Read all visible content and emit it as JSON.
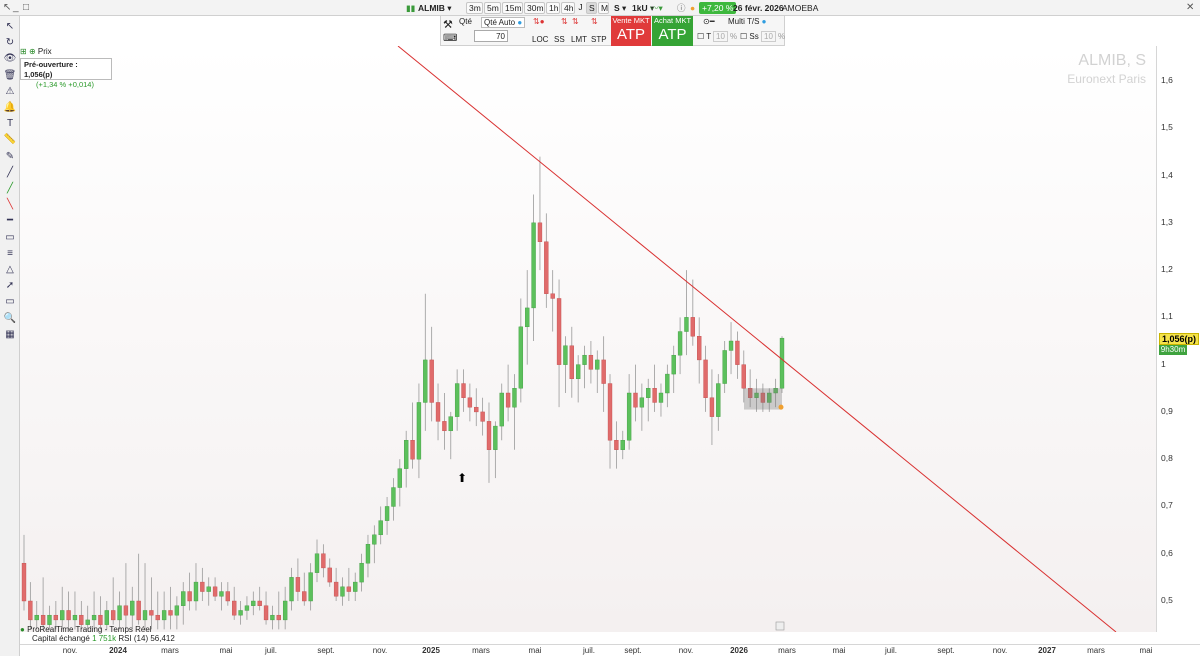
{
  "topbar": {
    "symbol": "ALMIB",
    "timeframes": [
      "3m",
      "5m",
      "15m",
      "30m",
      "1h",
      "4h",
      "J",
      "S",
      "M"
    ],
    "selected_timeframe": "S",
    "timeframe_extra": "S",
    "units": "1kU",
    "change_badge": "+7,20 %",
    "date": "26 févr. 2026",
    "ticker_label": "AMOEBA",
    "colors": {
      "badge": "#3db83d"
    }
  },
  "orderbar": {
    "qty_label": "Qté",
    "qty_auto_label": "Qté Auto",
    "qty_value": "70",
    "order_types": [
      "LOC",
      "SS",
      "LMT",
      "STP"
    ],
    "sell_label": "Vente MKT",
    "sell_value": "ATP",
    "buy_label": "Achat MKT",
    "buy_value": "ATP",
    "multi_label": "Multi T/S",
    "t_label": "T",
    "t_value": "10",
    "ss_label": "Ss",
    "ss_value": "10",
    "percent": "%",
    "colors": {
      "sell": "#e03a3a",
      "buy": "#35a435"
    }
  },
  "chart": {
    "prix_label": "Prix",
    "preopen_label": "Pré-ouverture : 1,056(p)",
    "preopen_change": "(+1,34 % +0,014)",
    "watermark_symbol": "ALMIB, S",
    "watermark_exchange": "Euronext Paris",
    "price_tag": "1,056(p)",
    "time_tag": "9h30m",
    "status_title": "ProRealTime Trading - Temps Réel",
    "capital_label": "Capital échangé",
    "capital_value": "1 751k",
    "rsi_label": "RSI (14)",
    "rsi_value": "56,412",
    "colors": {
      "up": "#5cc05c",
      "down": "#e06b6b",
      "trendline": "#d93030"
    }
  },
  "chart_data": {
    "type": "candlestick",
    "y_ticks": [
      "1,6",
      "1,5",
      "1,4",
      "1,3",
      "1,2",
      "1,1",
      "1",
      "0,9",
      "0,8",
      "0,7",
      "0,6",
      "0,5"
    ],
    "ylim": [
      0.44,
      1.67
    ],
    "x_ticks": [
      "nov.",
      "2024",
      "mars",
      "mai",
      "juil.",
      "sept.",
      "nov.",
      "2025",
      "mars",
      "mai",
      "juil.",
      "sept.",
      "nov.",
      "2026",
      "mars",
      "mai",
      "juil.",
      "sept.",
      "nov.",
      "2027",
      "mars",
      "mai"
    ],
    "year_ticks": [
      "2024",
      "2025",
      "2026",
      "2027"
    ],
    "last_price": 1.056,
    "trendline": [
      {
        "date": "2025-02",
        "value": 1.67
      },
      {
        "date": "2026-03",
        "value": 0.96
      },
      {
        "date": "2027-03",
        "value": 0.44
      }
    ],
    "series": [
      {
        "o": 0.58,
        "h": 0.64,
        "l": 0.48,
        "c": 0.5
      },
      {
        "o": 0.5,
        "h": 0.54,
        "l": 0.44,
        "c": 0.46
      },
      {
        "o": 0.46,
        "h": 0.5,
        "l": 0.44,
        "c": 0.47
      },
      {
        "o": 0.47,
        "h": 0.55,
        "l": 0.44,
        "c": 0.45
      },
      {
        "o": 0.45,
        "h": 0.49,
        "l": 0.44,
        "c": 0.47
      },
      {
        "o": 0.47,
        "h": 0.5,
        "l": 0.44,
        "c": 0.46
      },
      {
        "o": 0.46,
        "h": 0.53,
        "l": 0.44,
        "c": 0.48
      },
      {
        "o": 0.48,
        "h": 0.52,
        "l": 0.44,
        "c": 0.46
      },
      {
        "o": 0.46,
        "h": 0.52,
        "l": 0.44,
        "c": 0.47
      },
      {
        "o": 0.47,
        "h": 0.5,
        "l": 0.44,
        "c": 0.45
      },
      {
        "o": 0.45,
        "h": 0.49,
        "l": 0.44,
        "c": 0.46
      },
      {
        "o": 0.46,
        "h": 0.52,
        "l": 0.44,
        "c": 0.47
      },
      {
        "o": 0.47,
        "h": 0.51,
        "l": 0.44,
        "c": 0.45
      },
      {
        "o": 0.45,
        "h": 0.5,
        "l": 0.44,
        "c": 0.48
      },
      {
        "o": 0.48,
        "h": 0.55,
        "l": 0.45,
        "c": 0.46
      },
      {
        "o": 0.46,
        "h": 0.52,
        "l": 0.44,
        "c": 0.49
      },
      {
        "o": 0.49,
        "h": 0.58,
        "l": 0.44,
        "c": 0.47
      },
      {
        "o": 0.47,
        "h": 0.53,
        "l": 0.44,
        "c": 0.5
      },
      {
        "o": 0.5,
        "h": 0.6,
        "l": 0.45,
        "c": 0.46
      },
      {
        "o": 0.46,
        "h": 0.58,
        "l": 0.44,
        "c": 0.48
      },
      {
        "o": 0.48,
        "h": 0.55,
        "l": 0.44,
        "c": 0.47
      },
      {
        "o": 0.47,
        "h": 0.52,
        "l": 0.44,
        "c": 0.46
      },
      {
        "o": 0.46,
        "h": 0.52,
        "l": 0.44,
        "c": 0.48
      },
      {
        "o": 0.48,
        "h": 0.53,
        "l": 0.44,
        "c": 0.47
      },
      {
        "o": 0.47,
        "h": 0.51,
        "l": 0.44,
        "c": 0.49
      },
      {
        "o": 0.49,
        "h": 0.54,
        "l": 0.45,
        "c": 0.52
      },
      {
        "o": 0.52,
        "h": 0.56,
        "l": 0.48,
        "c": 0.5
      },
      {
        "o": 0.5,
        "h": 0.58,
        "l": 0.48,
        "c": 0.54
      },
      {
        "o": 0.54,
        "h": 0.57,
        "l": 0.5,
        "c": 0.52
      },
      {
        "o": 0.52,
        "h": 0.55,
        "l": 0.49,
        "c": 0.53
      },
      {
        "o": 0.53,
        "h": 0.55,
        "l": 0.5,
        "c": 0.51
      },
      {
        "o": 0.51,
        "h": 0.54,
        "l": 0.48,
        "c": 0.52
      },
      {
        "o": 0.52,
        "h": 0.54,
        "l": 0.49,
        "c": 0.5
      },
      {
        "o": 0.5,
        "h": 0.53,
        "l": 0.46,
        "c": 0.47
      },
      {
        "o": 0.47,
        "h": 0.5,
        "l": 0.45,
        "c": 0.48
      },
      {
        "o": 0.48,
        "h": 0.51,
        "l": 0.46,
        "c": 0.49
      },
      {
        "o": 0.49,
        "h": 0.52,
        "l": 0.47,
        "c": 0.5
      },
      {
        "o": 0.5,
        "h": 0.53,
        "l": 0.48,
        "c": 0.49
      },
      {
        "o": 0.49,
        "h": 0.52,
        "l": 0.45,
        "c": 0.46
      },
      {
        "o": 0.46,
        "h": 0.49,
        "l": 0.44,
        "c": 0.47
      },
      {
        "o": 0.47,
        "h": 0.52,
        "l": 0.44,
        "c": 0.46
      },
      {
        "o": 0.46,
        "h": 0.53,
        "l": 0.44,
        "c": 0.5
      },
      {
        "o": 0.5,
        "h": 0.57,
        "l": 0.48,
        "c": 0.55
      },
      {
        "o": 0.55,
        "h": 0.59,
        "l": 0.5,
        "c": 0.52
      },
      {
        "o": 0.52,
        "h": 0.56,
        "l": 0.49,
        "c": 0.5
      },
      {
        "o": 0.5,
        "h": 0.58,
        "l": 0.48,
        "c": 0.56
      },
      {
        "o": 0.56,
        "h": 0.63,
        "l": 0.54,
        "c": 0.6
      },
      {
        "o": 0.6,
        "h": 0.62,
        "l": 0.55,
        "c": 0.57
      },
      {
        "o": 0.57,
        "h": 0.59,
        "l": 0.53,
        "c": 0.54
      },
      {
        "o": 0.54,
        "h": 0.57,
        "l": 0.5,
        "c": 0.51
      },
      {
        "o": 0.51,
        "h": 0.55,
        "l": 0.49,
        "c": 0.53
      },
      {
        "o": 0.53,
        "h": 0.57,
        "l": 0.5,
        "c": 0.52
      },
      {
        "o": 0.52,
        "h": 0.56,
        "l": 0.5,
        "c": 0.54
      },
      {
        "o": 0.54,
        "h": 0.6,
        "l": 0.52,
        "c": 0.58
      },
      {
        "o": 0.58,
        "h": 0.64,
        "l": 0.55,
        "c": 0.62
      },
      {
        "o": 0.62,
        "h": 0.66,
        "l": 0.58,
        "c": 0.64
      },
      {
        "o": 0.64,
        "h": 0.7,
        "l": 0.62,
        "c": 0.67
      },
      {
        "o": 0.67,
        "h": 0.72,
        "l": 0.64,
        "c": 0.7
      },
      {
        "o": 0.7,
        "h": 0.76,
        "l": 0.67,
        "c": 0.74
      },
      {
        "o": 0.74,
        "h": 0.8,
        "l": 0.7,
        "c": 0.78
      },
      {
        "o": 0.78,
        "h": 0.86,
        "l": 0.74,
        "c": 0.84
      },
      {
        "o": 0.84,
        "h": 0.92,
        "l": 0.78,
        "c": 0.8
      },
      {
        "o": 0.8,
        "h": 0.96,
        "l": 0.76,
        "c": 0.92
      },
      {
        "o": 0.92,
        "h": 1.15,
        "l": 0.86,
        "c": 1.01
      },
      {
        "o": 1.01,
        "h": 1.08,
        "l": 0.88,
        "c": 0.92
      },
      {
        "o": 0.92,
        "h": 0.96,
        "l": 0.84,
        "c": 0.88
      },
      {
        "o": 0.88,
        "h": 0.94,
        "l": 0.82,
        "c": 0.86
      },
      {
        "o": 0.86,
        "h": 0.9,
        "l": 0.8,
        "c": 0.89
      },
      {
        "o": 0.89,
        "h": 0.99,
        "l": 0.86,
        "c": 0.96
      },
      {
        "o": 0.96,
        "h": 0.99,
        "l": 0.9,
        "c": 0.93
      },
      {
        "o": 0.93,
        "h": 0.96,
        "l": 0.88,
        "c": 0.91
      },
      {
        "o": 0.91,
        "h": 0.95,
        "l": 0.87,
        "c": 0.9
      },
      {
        "o": 0.9,
        "h": 0.93,
        "l": 0.85,
        "c": 0.88
      },
      {
        "o": 0.88,
        "h": 0.92,
        "l": 0.75,
        "c": 0.82
      },
      {
        "o": 0.82,
        "h": 0.88,
        "l": 0.76,
        "c": 0.87
      },
      {
        "o": 0.87,
        "h": 0.96,
        "l": 0.84,
        "c": 0.94
      },
      {
        "o": 0.94,
        "h": 1.0,
        "l": 0.88,
        "c": 0.91
      },
      {
        "o": 0.91,
        "h": 0.98,
        "l": 0.82,
        "c": 0.95
      },
      {
        "o": 0.95,
        "h": 1.14,
        "l": 0.92,
        "c": 1.08
      },
      {
        "o": 1.08,
        "h": 1.2,
        "l": 1.0,
        "c": 1.12
      },
      {
        "o": 1.12,
        "h": 1.36,
        "l": 1.05,
        "c": 1.3
      },
      {
        "o": 1.3,
        "h": 1.44,
        "l": 1.2,
        "c": 1.26
      },
      {
        "o": 1.26,
        "h": 1.32,
        "l": 1.12,
        "c": 1.15
      },
      {
        "o": 1.15,
        "h": 1.2,
        "l": 1.07,
        "c": 1.14
      },
      {
        "o": 1.14,
        "h": 1.18,
        "l": 0.91,
        "c": 1.0
      },
      {
        "o": 1.0,
        "h": 1.06,
        "l": 0.94,
        "c": 1.04
      },
      {
        "o": 1.04,
        "h": 1.08,
        "l": 0.93,
        "c": 0.97
      },
      {
        "o": 0.97,
        "h": 1.02,
        "l": 0.92,
        "c": 1.0
      },
      {
        "o": 1.0,
        "h": 1.04,
        "l": 0.95,
        "c": 1.02
      },
      {
        "o": 1.02,
        "h": 1.05,
        "l": 0.96,
        "c": 0.99
      },
      {
        "o": 0.99,
        "h": 1.03,
        "l": 0.94,
        "c": 1.01
      },
      {
        "o": 1.01,
        "h": 1.06,
        "l": 0.9,
        "c": 0.96
      },
      {
        "o": 0.96,
        "h": 0.98,
        "l": 0.78,
        "c": 0.84
      },
      {
        "o": 0.84,
        "h": 0.88,
        "l": 0.78,
        "c": 0.82
      },
      {
        "o": 0.82,
        "h": 0.86,
        "l": 0.8,
        "c": 0.84
      },
      {
        "o": 0.84,
        "h": 0.98,
        "l": 0.82,
        "c": 0.94
      },
      {
        "o": 0.94,
        "h": 1.0,
        "l": 0.88,
        "c": 0.91
      },
      {
        "o": 0.91,
        "h": 0.96,
        "l": 0.86,
        "c": 0.93
      },
      {
        "o": 0.93,
        "h": 0.97,
        "l": 0.88,
        "c": 0.95
      },
      {
        "o": 0.95,
        "h": 1.0,
        "l": 0.9,
        "c": 0.92
      },
      {
        "o": 0.92,
        "h": 0.96,
        "l": 0.89,
        "c": 0.94
      },
      {
        "o": 0.94,
        "h": 1.0,
        "l": 0.91,
        "c": 0.98
      },
      {
        "o": 0.98,
        "h": 1.04,
        "l": 0.94,
        "c": 1.02
      },
      {
        "o": 1.02,
        "h": 1.1,
        "l": 0.98,
        "c": 1.07
      },
      {
        "o": 1.07,
        "h": 1.2,
        "l": 1.02,
        "c": 1.1
      },
      {
        "o": 1.1,
        "h": 1.18,
        "l": 1.04,
        "c": 1.06
      },
      {
        "o": 1.06,
        "h": 1.1,
        "l": 0.96,
        "c": 1.01
      },
      {
        "o": 1.01,
        "h": 1.04,
        "l": 0.9,
        "c": 0.93
      },
      {
        "o": 0.93,
        "h": 0.99,
        "l": 0.83,
        "c": 0.89
      },
      {
        "o": 0.89,
        "h": 0.98,
        "l": 0.86,
        "c": 0.96
      },
      {
        "o": 0.96,
        "h": 1.05,
        "l": 0.94,
        "c": 1.03
      },
      {
        "o": 1.03,
        "h": 1.09,
        "l": 0.98,
        "c": 1.05
      },
      {
        "o": 1.05,
        "h": 1.07,
        "l": 0.97,
        "c": 1.0
      },
      {
        "o": 1.0,
        "h": 1.03,
        "l": 0.92,
        "c": 0.95
      },
      {
        "o": 0.95,
        "h": 0.99,
        "l": 0.91,
        "c": 0.93
      },
      {
        "o": 0.93,
        "h": 0.97,
        "l": 0.9,
        "c": 0.94
      },
      {
        "o": 0.94,
        "h": 0.96,
        "l": 0.9,
        "c": 0.92
      },
      {
        "o": 0.92,
        "h": 0.95,
        "l": 0.9,
        "c": 0.94
      },
      {
        "o": 0.94,
        "h": 0.97,
        "l": 0.91,
        "c": 0.95
      },
      {
        "o": 0.95,
        "h": 1.06,
        "l": 0.94,
        "c": 1.056
      }
    ]
  },
  "lefttools": [
    "cursor-icon",
    "rotate-icon",
    "eye-icon",
    "trash-icon",
    "alert-icon",
    "bell-icon",
    "text-icon",
    "ruler-icon",
    "pencil-icon",
    "line-icon",
    "trend-up-icon",
    "trend-down-icon",
    "horizontal-line-icon",
    "channel-icon",
    "fibonacci-icon",
    "triangle-icon",
    "arrow-icon",
    "rect-icon",
    "zoom-icon",
    "grid-icon"
  ]
}
